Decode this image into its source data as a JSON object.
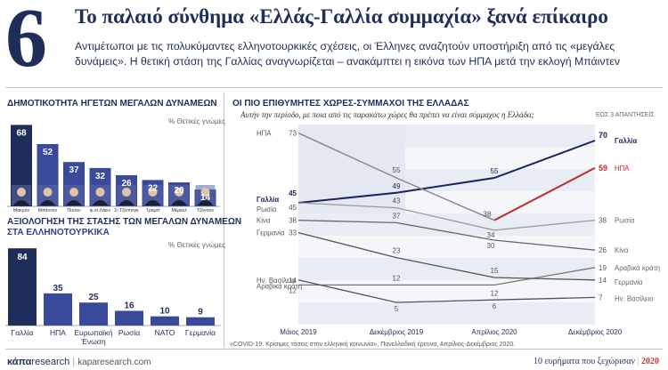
{
  "header": {
    "number": "6",
    "title": "Το παλαιό σύνθημα «Ελλάς-Γαλλία συμμαχία» ξανά επίκαιρο",
    "subtitle": "Αντιμέτωποι με τις πολυκύμαντες ελληνοτουρκικές σχέσεις, οι Έλληνες αναζητούν υποστήριξη από τις «μεγάλες δυνάμεις». Η θετική στάση της Γαλλίας αναγνωρίζεται – ανακάμπτει η εικόνα των ΗΠΑ μετά την εκλογή Μπάιντεν"
  },
  "leaders_chart": {
    "title": "ΔΗΜΟΤΙΚΟΤΗΤΑ ΗΓΕΤΩΝ ΜΕΓΑΛΩΝ ΔΥΝΑΜΕΩΝ",
    "note": "% Θετικές γνώμες"
  },
  "stance_chart": {
    "title_line1": "ΑΞΙΟΛΟΓΗΣΗ ΤΗΣ ΣΤΑΣΗΣ ΤΩΝ ΜΕΓΑΛΩΝ ΔΥΝΑΜΕΩΝ",
    "title_line2": "ΣΤΑ ΕΛΛΗΝΟΤΟΥΡΚΙΚΑ",
    "note": "% Θετικές γνώμες"
  },
  "allies_chart": {
    "title": "ΟΙ ΠΙΟ ΕΠΙΘΥΜΗΤΕΣ ΧΩΡΕΣ-ΣΥΜΜΑΧΟΙ ΤΗΣ ΕΛΛΑΔΑΣ",
    "question": "Αυτήν την περίοδο, με ποια από τις παρακάτω χώρες θα πρέπει να είναι σύμμαχος η Ελλάδα;",
    "note": "ΕΩΣ 3 ΑΠΑΝΤΗΣΕΙΣ"
  },
  "chart_data": [
    {
      "type": "bar",
      "title": "ΔΗΜΟΤΙΚΟΤΗΤΑ ΗΓΕΤΩΝ ΜΕΓΑΛΩΝ ΔΥΝΑΜΕΩΝ",
      "categories": [
        "Μακρόν",
        "Μπάιντεν",
        "Πούτιν",
        "φ.ντ.Λάιεν",
        "Σι Τζινπινγκ",
        "Τραμπ",
        "Μέρκελ",
        "Τζόνσον"
      ],
      "values": [
        68,
        52,
        37,
        32,
        26,
        22,
        20,
        14
      ],
      "ylim": [
        0,
        75
      ],
      "colors": {
        "highlight": "#1f2d5a",
        "normal": "#3a4a9a"
      }
    },
    {
      "type": "bar",
      "title": "ΑΞΙΟΛΟΓΗΣΗ ΤΗΣ ΣΤΑΣΗΣ ΤΩΝ ΜΕΓΑΛΩΝ ΔΥΝΑΜΕΩΝ ΣΤΑ ΕΛΛΗΝΟΤΟΥΡΚΙΚΑ",
      "categories": [
        "Γαλλία",
        "ΗΠΑ",
        "Ευρωπαϊκή Ένωση",
        "Ρωσία",
        "ΝΑΤΟ",
        "Γερμανία"
      ],
      "values": [
        84,
        35,
        25,
        16,
        10,
        9
      ],
      "ylim": [
        0,
        90
      ],
      "colors": {
        "highlight": "#1f2d5a",
        "normal": "#3a4a9a"
      }
    },
    {
      "type": "line",
      "title": "ΟΙ ΠΙΟ ΕΠΙΘΥΜΗΤΕΣ ΧΩΡΕΣ-ΣΥΜΜΑΧΟΙ ΤΗΣ ΕΛΛΑΔΑΣ",
      "x": [
        "Μάιος 2019",
        "Δεκέμβριος 2019",
        "Απρίλιος 2020",
        "Δεκέμβριος 2020"
      ],
      "ylim": [
        0,
        80
      ],
      "series": [
        {
          "name": "Γαλλία",
          "values": [
            45,
            49,
            55,
            70
          ],
          "color": "#1a2660"
        },
        {
          "name": "ΗΠΑ",
          "values": [
            73,
            55,
            38,
            59
          ],
          "color": "#c0282d"
        },
        {
          "name": "Ρωσία",
          "values": [
            45,
            43,
            34,
            38
          ],
          "color": "#999999"
        },
        {
          "name": "Κίνα",
          "values": [
            38,
            37,
            30,
            26
          ],
          "color": "#666666"
        },
        {
          "name": "Αραβικά κράτη",
          "values": [
            12,
            12,
            12,
            19
          ],
          "color": "#777777"
        },
        {
          "name": "Γερμανία",
          "values": [
            33,
            23,
            15,
            14
          ],
          "color": "#555555"
        },
        {
          "name": "Ην. Βασίλειο",
          "values": [
            14,
            5,
            6,
            7
          ],
          "color": "#555555"
        }
      ]
    }
  ],
  "footer": {
    "logo_bold": "κάπα",
    "logo_rest": "research",
    "url": "kaparesearch.com",
    "source": "«COVID-19: Κρίσιμες τάσεις στην ελληνική κοινωνία», Πανελλαδική έρευνα, Απρίλιος-Δεκέμβριος 2020.",
    "right_text": "10 ευρήματα που ξεχώρισαν",
    "right_year": "2020"
  }
}
